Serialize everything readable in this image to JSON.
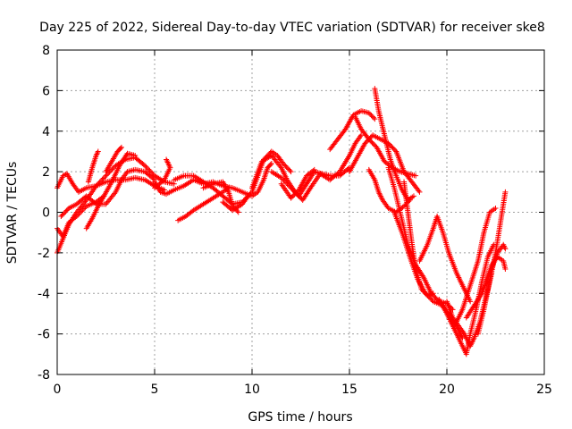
{
  "chart_data": {
    "type": "scatter",
    "title": "Day 225 of 2022, Sidereal Day-to-day VTEC variation (SDTVAR) for receiver ske8",
    "xlabel": "GPS time / hours",
    "ylabel": "SDTVAR / TECUs",
    "xlim": [
      0,
      25
    ],
    "ylim": [
      -8,
      8
    ],
    "xticks": [
      "0",
      "5",
      "10",
      "15",
      "20",
      "25"
    ],
    "yticks": [
      "-8",
      "-6",
      "-4",
      "-2",
      "0",
      "2",
      "4",
      "6",
      "8"
    ],
    "grid": true,
    "marker": "+",
    "color": "#ff0000",
    "series": [
      {
        "points": [
          [
            0.0,
            -2.0
          ],
          [
            0.3,
            -1.3
          ],
          [
            0.6,
            -0.6
          ],
          [
            1.0,
            0.0
          ],
          [
            1.5,
            0.6
          ],
          [
            2.0,
            1.3
          ],
          [
            2.5,
            1.8
          ],
          [
            3.0,
            2.3
          ],
          [
            3.5,
            2.6
          ],
          [
            4.0,
            2.7
          ],
          [
            4.5,
            2.3
          ],
          [
            5.0,
            1.8
          ],
          [
            5.5,
            1.5
          ],
          [
            6.0,
            1.4
          ]
        ]
      },
      {
        "points": [
          [
            0.0,
            1.2
          ],
          [
            0.3,
            1.8
          ],
          [
            0.5,
            1.9
          ],
          [
            0.8,
            1.4
          ],
          [
            1.1,
            1.0
          ],
          [
            1.5,
            1.2
          ],
          [
            2.0,
            1.3
          ],
          [
            2.5,
            1.5
          ],
          [
            3.0,
            1.6
          ],
          [
            3.5,
            1.6
          ],
          [
            4.0,
            1.7
          ],
          [
            4.5,
            1.6
          ],
          [
            5.0,
            1.3
          ],
          [
            5.5,
            1.1
          ]
        ]
      },
      {
        "points": [
          [
            0.0,
            -0.8
          ],
          [
            0.3,
            -1.2
          ],
          [
            0.6,
            -0.5
          ],
          [
            1.0,
            -0.2
          ],
          [
            1.5,
            0.3
          ],
          [
            2.0,
            0.5
          ],
          [
            2.4,
            0.8
          ]
        ]
      },
      {
        "points": [
          [
            0.2,
            -0.2
          ],
          [
            0.6,
            0.2
          ],
          [
            1.0,
            0.4
          ],
          [
            1.5,
            0.8
          ],
          [
            2.0,
            0.4
          ],
          [
            2.5,
            0.4
          ],
          [
            3.0,
            1.0
          ],
          [
            3.3,
            1.6
          ],
          [
            3.6,
            2.0
          ],
          [
            4.0,
            2.1
          ],
          [
            4.5,
            2.0
          ],
          [
            5.0,
            1.6
          ]
        ]
      },
      {
        "points": [
          [
            1.5,
            -0.8
          ],
          [
            1.8,
            -0.3
          ],
          [
            2.1,
            0.3
          ],
          [
            2.4,
            0.8
          ],
          [
            2.8,
            1.5
          ],
          [
            3.2,
            2.3
          ],
          [
            3.6,
            2.9
          ],
          [
            4.0,
            2.8
          ]
        ]
      },
      {
        "points": [
          [
            1.6,
            1.5
          ],
          [
            1.8,
            2.2
          ],
          [
            2.0,
            2.8
          ],
          [
            2.1,
            3.0
          ]
        ]
      },
      {
        "points": [
          [
            2.5,
            2.0
          ],
          [
            2.8,
            2.5
          ],
          [
            3.1,
            3.0
          ],
          [
            3.3,
            3.2
          ]
        ]
      },
      {
        "points": [
          [
            5.0,
            1.2
          ],
          [
            5.5,
            1.6
          ],
          [
            5.8,
            2.2
          ],
          [
            5.6,
            2.6
          ]
        ]
      },
      {
        "points": [
          [
            5.0,
            1.5
          ],
          [
            5.3,
            1.0
          ],
          [
            5.6,
            0.9
          ],
          [
            6.0,
            1.1
          ],
          [
            6.5,
            1.3
          ],
          [
            7.0,
            1.6
          ],
          [
            7.5,
            1.4
          ],
          [
            8.0,
            1.5
          ],
          [
            8.5,
            1.3
          ],
          [
            9.0,
            1.2
          ],
          [
            9.5,
            1.0
          ],
          [
            10.0,
            0.8
          ],
          [
            10.3,
            1.0
          ],
          [
            10.6,
            1.6
          ],
          [
            10.8,
            2.2
          ],
          [
            11.0,
            2.4
          ]
        ]
      },
      {
        "points": [
          [
            6.0,
            1.6
          ],
          [
            6.5,
            1.8
          ],
          [
            7.0,
            1.8
          ],
          [
            7.5,
            1.5
          ],
          [
            8.0,
            1.2
          ],
          [
            8.5,
            0.8
          ],
          [
            9.0,
            0.4
          ],
          [
            9.5,
            0.5
          ],
          [
            10.0,
            1.0
          ],
          [
            10.3,
            1.8
          ],
          [
            10.6,
            2.6
          ],
          [
            11.0,
            3.0
          ],
          [
            11.3,
            2.8
          ],
          [
            11.6,
            2.4
          ],
          [
            12.0,
            2.0
          ]
        ]
      },
      {
        "points": [
          [
            6.2,
            -0.4
          ],
          [
            6.6,
            -0.2
          ],
          [
            7.0,
            0.1
          ],
          [
            7.5,
            0.4
          ],
          [
            8.0,
            0.7
          ],
          [
            8.5,
            1.0
          ],
          [
            8.8,
            1.2
          ]
        ]
      },
      {
        "points": [
          [
            7.5,
            1.2
          ],
          [
            8.0,
            1.4
          ],
          [
            8.5,
            1.5
          ],
          [
            8.8,
            1.0
          ],
          [
            9.0,
            0.3
          ],
          [
            9.3,
            0.0
          ]
        ]
      },
      {
        "points": [
          [
            8.5,
            0.5
          ],
          [
            9.0,
            0.1
          ],
          [
            9.5,
            0.4
          ],
          [
            9.8,
            0.8
          ]
        ]
      },
      {
        "points": [
          [
            10.0,
            1.2
          ],
          [
            10.5,
            2.5
          ],
          [
            11.0,
            2.8
          ],
          [
            11.5,
            2.2
          ],
          [
            11.8,
            1.6
          ],
          [
            12.2,
            1.0
          ],
          [
            12.6,
            0.6
          ],
          [
            13.0,
            1.2
          ],
          [
            13.5,
            1.9
          ],
          [
            14.0,
            1.6
          ],
          [
            14.5,
            2.0
          ],
          [
            15.0,
            2.8
          ],
          [
            15.3,
            3.4
          ],
          [
            15.6,
            3.8
          ]
        ]
      },
      {
        "points": [
          [
            11.0,
            2.0
          ],
          [
            11.5,
            1.7
          ],
          [
            12.0,
            1.2
          ],
          [
            12.4,
            0.8
          ],
          [
            12.8,
            1.4
          ],
          [
            13.2,
            2.0
          ],
          [
            13.6,
            1.9
          ],
          [
            14.0,
            1.8
          ],
          [
            14.5,
            1.8
          ],
          [
            15.0,
            2.2
          ]
        ]
      },
      {
        "points": [
          [
            11.5,
            1.4
          ],
          [
            12.0,
            0.7
          ],
          [
            12.4,
            1.1
          ],
          [
            12.8,
            1.8
          ],
          [
            13.2,
            2.1
          ]
        ]
      },
      {
        "points": [
          [
            14.0,
            3.1
          ],
          [
            14.4,
            3.6
          ],
          [
            14.8,
            4.1
          ],
          [
            15.2,
            4.8
          ],
          [
            15.6,
            5.0
          ],
          [
            16.0,
            4.9
          ],
          [
            16.3,
            4.6
          ]
        ]
      },
      {
        "points": [
          [
            15.3,
            4.7
          ],
          [
            15.6,
            4.1
          ],
          [
            16.0,
            3.6
          ],
          [
            16.4,
            3.2
          ],
          [
            16.8,
            2.5
          ],
          [
            17.2,
            2.2
          ],
          [
            17.6,
            2.0
          ],
          [
            18.0,
            1.9
          ],
          [
            18.4,
            1.8
          ]
        ]
      },
      {
        "points": [
          [
            16.3,
            6.1
          ],
          [
            16.5,
            5.0
          ],
          [
            16.7,
            4.2
          ],
          [
            16.9,
            3.4
          ],
          [
            17.1,
            2.6
          ],
          [
            17.4,
            1.8
          ],
          [
            17.7,
            1.1
          ],
          [
            18.0,
            0.6
          ],
          [
            18.3,
            0.8
          ]
        ]
      },
      {
        "points": [
          [
            15.0,
            2.0
          ],
          [
            15.4,
            2.7
          ],
          [
            15.8,
            3.4
          ],
          [
            16.2,
            3.8
          ],
          [
            16.6,
            3.6
          ],
          [
            17.0,
            3.4
          ],
          [
            17.4,
            3.0
          ],
          [
            17.8,
            2.0
          ],
          [
            18.2,
            1.5
          ],
          [
            18.6,
            1.0
          ]
        ]
      },
      {
        "points": [
          [
            16.0,
            2.1
          ],
          [
            16.3,
            1.6
          ],
          [
            16.5,
            1.0
          ],
          [
            16.7,
            0.6
          ],
          [
            17.0,
            0.2
          ],
          [
            17.4,
            0.0
          ],
          [
            17.8,
            0.3
          ],
          [
            18.1,
            0.6
          ]
        ]
      },
      {
        "points": [
          [
            17.0,
            2.2
          ],
          [
            17.3,
            1.2
          ],
          [
            17.6,
            0.0
          ],
          [
            18.0,
            -1.6
          ],
          [
            18.4,
            -2.6
          ],
          [
            18.8,
            -3.2
          ],
          [
            19.2,
            -4.0
          ],
          [
            19.6,
            -4.4
          ],
          [
            20.0,
            -4.5
          ],
          [
            20.3,
            -4.8
          ]
        ]
      },
      {
        "points": [
          [
            17.3,
            0.0
          ],
          [
            17.7,
            -1.0
          ],
          [
            18.1,
            -2.2
          ],
          [
            18.5,
            -3.3
          ],
          [
            18.9,
            -4.0
          ],
          [
            19.3,
            -4.4
          ],
          [
            19.8,
            -4.6
          ],
          [
            20.2,
            -5.2
          ],
          [
            20.6,
            -5.8
          ],
          [
            20.8,
            -6.2
          ]
        ]
      },
      {
        "points": [
          [
            17.8,
            1.5
          ],
          [
            18.0,
            0.0
          ],
          [
            18.2,
            -1.5
          ],
          [
            18.4,
            -2.8
          ],
          [
            18.7,
            -3.8
          ],
          [
            19.0,
            -4.1
          ],
          [
            19.3,
            -4.0
          ]
        ]
      },
      {
        "points": [
          [
            18.6,
            -2.4
          ],
          [
            19.0,
            -1.6
          ],
          [
            19.3,
            -0.8
          ],
          [
            19.5,
            -0.2
          ],
          [
            19.8,
            -1.0
          ],
          [
            20.1,
            -2.0
          ],
          [
            20.5,
            -3.0
          ],
          [
            20.9,
            -3.8
          ],
          [
            21.2,
            -4.4
          ]
        ]
      },
      {
        "points": [
          [
            19.6,
            -4.3
          ],
          [
            20.0,
            -5.0
          ],
          [
            20.4,
            -5.8
          ],
          [
            20.7,
            -6.4
          ],
          [
            21.0,
            -7.0
          ],
          [
            21.2,
            -6.0
          ],
          [
            21.5,
            -4.8
          ],
          [
            21.8,
            -3.4
          ],
          [
            22.1,
            -2.2
          ],
          [
            22.4,
            -1.6
          ]
        ]
      },
      {
        "points": [
          [
            20.0,
            -4.4
          ],
          [
            20.3,
            -5.2
          ],
          [
            20.6,
            -5.6
          ],
          [
            20.9,
            -6.0
          ],
          [
            21.2,
            -6.6
          ],
          [
            21.4,
            -6.2
          ],
          [
            21.7,
            -5.4
          ],
          [
            22.0,
            -4.2
          ],
          [
            22.3,
            -3.0
          ]
        ]
      },
      {
        "points": [
          [
            20.4,
            -5.6
          ],
          [
            20.8,
            -4.8
          ],
          [
            21.2,
            -3.6
          ],
          [
            21.6,
            -2.4
          ],
          [
            21.9,
            -1.0
          ],
          [
            22.2,
            0.0
          ],
          [
            22.5,
            0.2
          ]
        ]
      },
      {
        "points": [
          [
            21.0,
            -5.2
          ],
          [
            21.4,
            -4.6
          ],
          [
            21.8,
            -4.0
          ],
          [
            22.2,
            -3.0
          ],
          [
            22.6,
            -2.0
          ],
          [
            22.9,
            -1.6
          ],
          [
            23.0,
            -1.8
          ]
        ]
      },
      {
        "points": [
          [
            21.6,
            -6.0
          ],
          [
            21.9,
            -4.8
          ],
          [
            22.2,
            -3.4
          ],
          [
            22.5,
            -2.0
          ],
          [
            22.7,
            -0.8
          ],
          [
            22.9,
            0.4
          ],
          [
            23.0,
            1.0
          ]
        ]
      },
      {
        "points": [
          [
            22.0,
            -3.4
          ],
          [
            22.3,
            -2.6
          ],
          [
            22.6,
            -2.2
          ],
          [
            22.9,
            -2.4
          ],
          [
            23.0,
            -2.8
          ]
        ]
      }
    ]
  }
}
